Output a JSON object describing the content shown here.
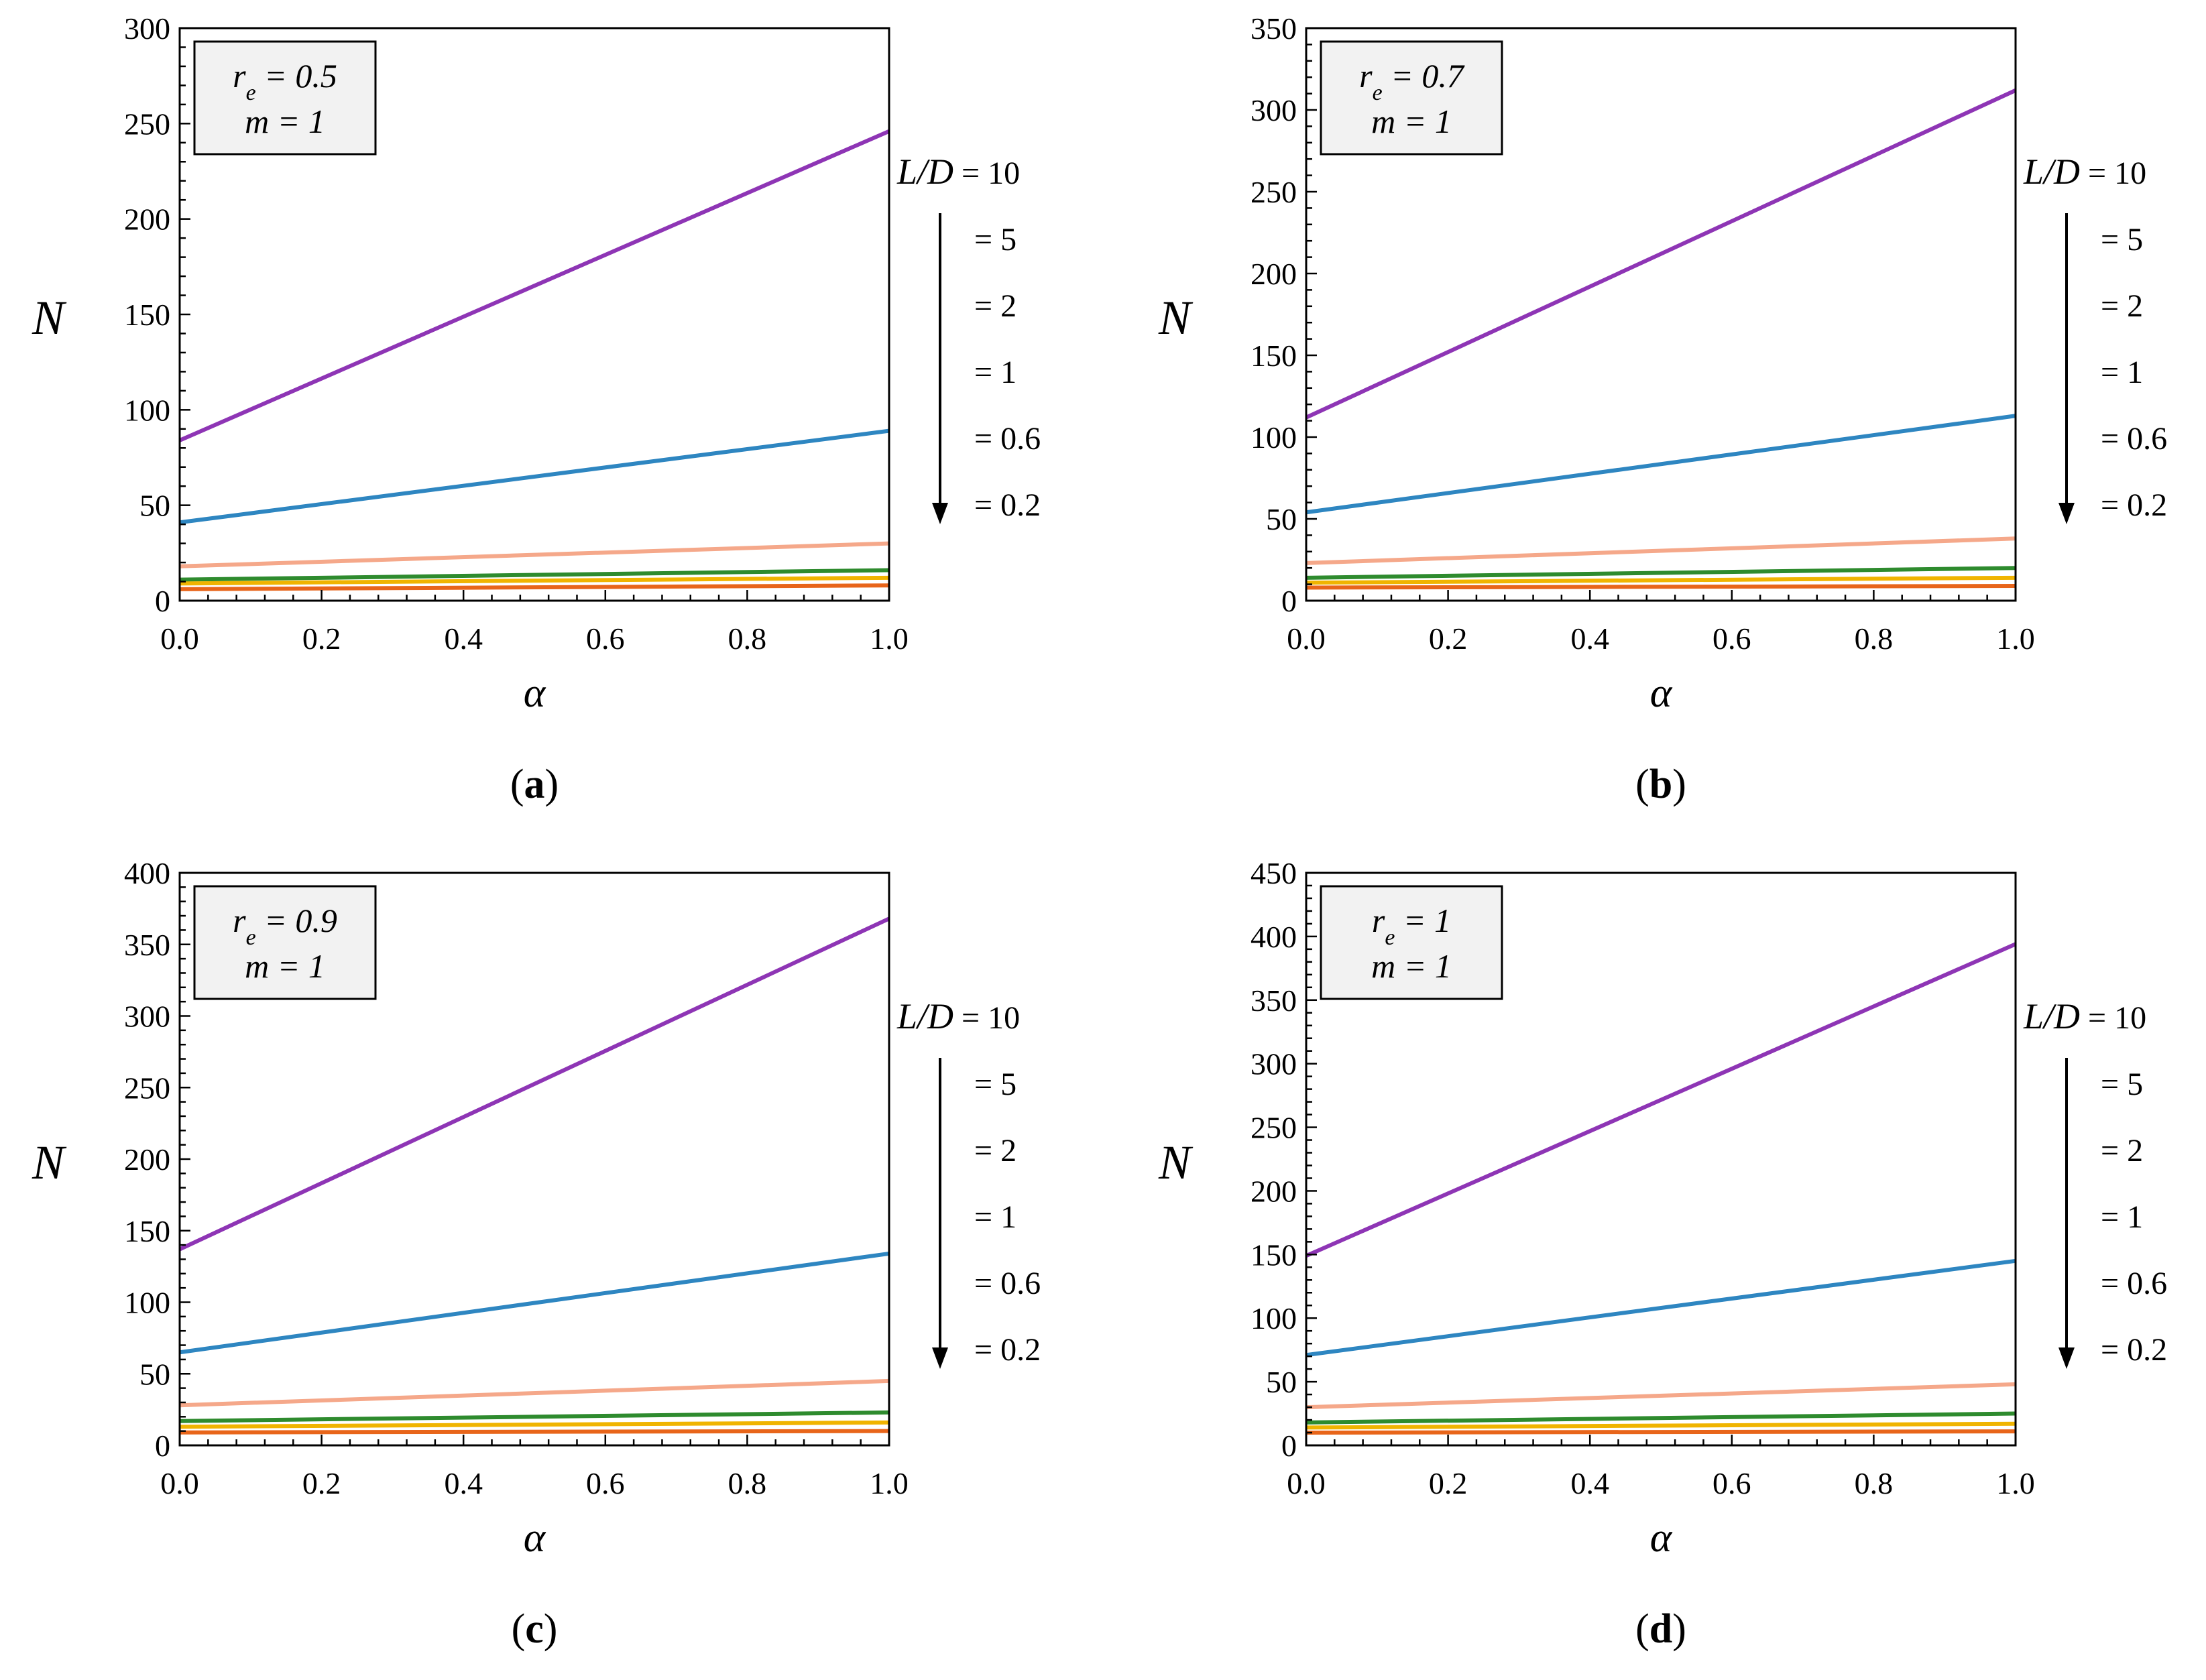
{
  "chart_data": [
    {
      "type": "line",
      "panel_label": "a",
      "xlabel": "α",
      "ylabel": "N",
      "xlim": [
        0,
        1
      ],
      "ylim": [
        0,
        300
      ],
      "yticks": [
        0,
        50,
        100,
        150,
        200,
        250,
        300
      ],
      "xticks": [
        "0.0",
        "0.2",
        "0.4",
        "0.6",
        "0.8",
        "1.0"
      ],
      "annotation": {
        "line1_var": "r",
        "line1_sub": "e",
        "line1_rest": " = 0.5",
        "line2": "m = 1"
      },
      "legend": {
        "title": "L/D",
        "entries": [
          "= 10",
          "= 5",
          "= 2",
          "= 1",
          "= 0.6",
          "= 0.2"
        ]
      },
      "series": [
        {
          "name": "L/D = 10",
          "color": "#8e35b5",
          "x": [
            0,
            1
          ],
          "y": [
            84,
            246
          ]
        },
        {
          "name": "L/D = 5",
          "color": "#2e86c1",
          "x": [
            0,
            1
          ],
          "y": [
            41,
            89
          ]
        },
        {
          "name": "L/D = 2",
          "color": "#f5a88a",
          "x": [
            0,
            1
          ],
          "y": [
            18,
            30
          ]
        },
        {
          "name": "L/D = 1",
          "color": "#2e8b2e",
          "x": [
            0,
            1
          ],
          "y": [
            11,
            16
          ]
        },
        {
          "name": "L/D = 0.6",
          "color": "#f0b400",
          "x": [
            0,
            1
          ],
          "y": [
            9,
            12
          ]
        },
        {
          "name": "L/D = 0.2",
          "color": "#e8651a",
          "x": [
            0,
            1
          ],
          "y": [
            6,
            8
          ]
        }
      ]
    },
    {
      "type": "line",
      "panel_label": "b",
      "xlabel": "α",
      "ylabel": "N",
      "xlim": [
        0,
        1
      ],
      "ylim": [
        0,
        350
      ],
      "yticks": [
        0,
        50,
        100,
        150,
        200,
        250,
        300,
        350
      ],
      "xticks": [
        "0.0",
        "0.2",
        "0.4",
        "0.6",
        "0.8",
        "1.0"
      ],
      "annotation": {
        "line1_var": "r",
        "line1_sub": "e",
        "line1_rest": " = 0.7",
        "line2": "m = 1"
      },
      "legend": {
        "title": "L/D",
        "entries": [
          "= 10",
          "= 5",
          "= 2",
          "= 1",
          "= 0.6",
          "= 0.2"
        ]
      },
      "series": [
        {
          "name": "L/D = 10",
          "color": "#8e35b5",
          "x": [
            0,
            1
          ],
          "y": [
            112,
            312
          ]
        },
        {
          "name": "L/D = 5",
          "color": "#2e86c1",
          "x": [
            0,
            1
          ],
          "y": [
            54,
            113
          ]
        },
        {
          "name": "L/D = 2",
          "color": "#f5a88a",
          "x": [
            0,
            1
          ],
          "y": [
            23,
            38
          ]
        },
        {
          "name": "L/D = 1",
          "color": "#2e8b2e",
          "x": [
            0,
            1
          ],
          "y": [
            14,
            20
          ]
        },
        {
          "name": "L/D = 0.6",
          "color": "#f0b400",
          "x": [
            0,
            1
          ],
          "y": [
            11,
            14
          ]
        },
        {
          "name": "L/D = 0.2",
          "color": "#e8651a",
          "x": [
            0,
            1
          ],
          "y": [
            8,
            9
          ]
        }
      ]
    },
    {
      "type": "line",
      "panel_label": "c",
      "xlabel": "α",
      "ylabel": "N",
      "xlim": [
        0,
        1
      ],
      "ylim": [
        0,
        400
      ],
      "yticks": [
        0,
        50,
        100,
        150,
        200,
        250,
        300,
        350,
        400
      ],
      "xticks": [
        "0.0",
        "0.2",
        "0.4",
        "0.6",
        "0.8",
        "1.0"
      ],
      "annotation": {
        "line1_var": "r",
        "line1_sub": "e",
        "line1_rest": " = 0.9",
        "line2": "m = 1"
      },
      "legend": {
        "title": "L/D",
        "entries": [
          "= 10",
          "= 5",
          "= 2",
          "= 1",
          "= 0.6",
          "= 0.2"
        ]
      },
      "series": [
        {
          "name": "L/D = 10",
          "color": "#8e35b5",
          "x": [
            0,
            1
          ],
          "y": [
            137,
            368
          ]
        },
        {
          "name": "L/D = 5",
          "color": "#2e86c1",
          "x": [
            0,
            1
          ],
          "y": [
            65,
            134
          ]
        },
        {
          "name": "L/D = 2",
          "color": "#f5a88a",
          "x": [
            0,
            1
          ],
          "y": [
            28,
            45
          ]
        },
        {
          "name": "L/D = 1",
          "color": "#2e8b2e",
          "x": [
            0,
            1
          ],
          "y": [
            17,
            23
          ]
        },
        {
          "name": "L/D = 0.6",
          "color": "#f0b400",
          "x": [
            0,
            1
          ],
          "y": [
            13,
            16
          ]
        },
        {
          "name": "L/D = 0.2",
          "color": "#e8651a",
          "x": [
            0,
            1
          ],
          "y": [
            9,
            10
          ]
        }
      ]
    },
    {
      "type": "line",
      "panel_label": "d",
      "xlabel": "α",
      "ylabel": "N",
      "xlim": [
        0,
        1
      ],
      "ylim": [
        0,
        450
      ],
      "yticks": [
        0,
        50,
        100,
        150,
        200,
        250,
        300,
        350,
        400,
        450
      ],
      "xticks": [
        "0.0",
        "0.2",
        "0.4",
        "0.6",
        "0.8",
        "1.0"
      ],
      "annotation": {
        "line1_var": "r",
        "line1_sub": "e",
        "line1_rest": " = 1",
        "line2": "m = 1"
      },
      "legend": {
        "title": "L/D",
        "entries": [
          "= 10",
          "= 5",
          "= 2",
          "= 1",
          "= 0.6",
          "= 0.2"
        ]
      },
      "series": [
        {
          "name": "L/D = 10",
          "color": "#8e35b5",
          "x": [
            0,
            1
          ],
          "y": [
            149,
            394
          ]
        },
        {
          "name": "L/D = 5",
          "color": "#2e86c1",
          "x": [
            0,
            1
          ],
          "y": [
            71,
            145
          ]
        },
        {
          "name": "L/D = 2",
          "color": "#f5a88a",
          "x": [
            0,
            1
          ],
          "y": [
            30,
            48
          ]
        },
        {
          "name": "L/D = 1",
          "color": "#2e8b2e",
          "x": [
            0,
            1
          ],
          "y": [
            18,
            25
          ]
        },
        {
          "name": "L/D = 0.6",
          "color": "#f0b400",
          "x": [
            0,
            1
          ],
          "y": [
            14,
            17
          ]
        },
        {
          "name": "L/D = 0.2",
          "color": "#e8651a",
          "x": [
            0,
            1
          ],
          "y": [
            10,
            11
          ]
        }
      ]
    }
  ]
}
